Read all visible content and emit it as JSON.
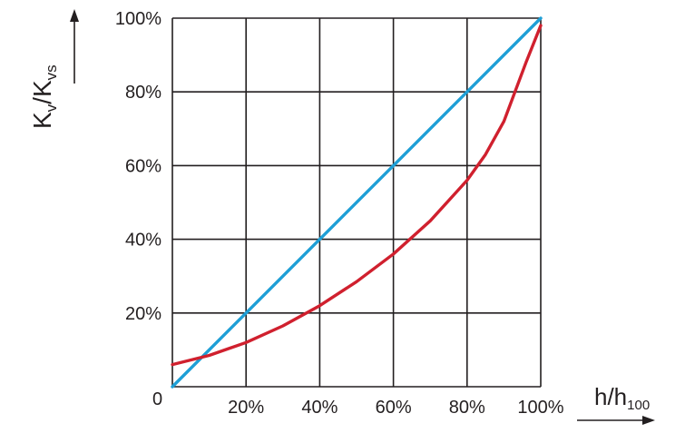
{
  "chart_data": {
    "type": "line",
    "ylabel": {
      "main": "K",
      "sub1": "v",
      "slash": "/K",
      "sub2": "vs"
    },
    "xlabel": {
      "main": "h/h",
      "sub": "100"
    },
    "xlim": [
      0,
      100
    ],
    "ylim": [
      0,
      100
    ],
    "grid": true,
    "x_ticks": [
      {
        "value": 20,
        "label": "20%"
      },
      {
        "value": 40,
        "label": "40%"
      },
      {
        "value": 60,
        "label": "60%"
      },
      {
        "value": 80,
        "label": "80%"
      },
      {
        "value": 100,
        "label": "100%"
      }
    ],
    "y_ticks": [
      {
        "value": 20,
        "label": "20%"
      },
      {
        "value": 40,
        "label": "40%"
      },
      {
        "value": 60,
        "label": "60%"
      },
      {
        "value": 80,
        "label": "80%"
      },
      {
        "value": 100,
        "label": "100%"
      }
    ],
    "origin_label": "0",
    "series": [
      {
        "color": "#1e9fd6",
        "points": [
          [
            0,
            0
          ],
          [
            20,
            20
          ],
          [
            40,
            40
          ],
          [
            60,
            60
          ],
          [
            80,
            80
          ],
          [
            100,
            100
          ]
        ]
      },
      {
        "color": "#d0202e",
        "points": [
          [
            0,
            6
          ],
          [
            10,
            8.5
          ],
          [
            20,
            12
          ],
          [
            30,
            16.5
          ],
          [
            40,
            22
          ],
          [
            50,
            28.5
          ],
          [
            60,
            36
          ],
          [
            70,
            45
          ],
          [
            80,
            56
          ],
          [
            85,
            63
          ],
          [
            90,
            72
          ],
          [
            93,
            80
          ],
          [
            96,
            88
          ],
          [
            98,
            93
          ],
          [
            100,
            98
          ]
        ]
      }
    ]
  }
}
